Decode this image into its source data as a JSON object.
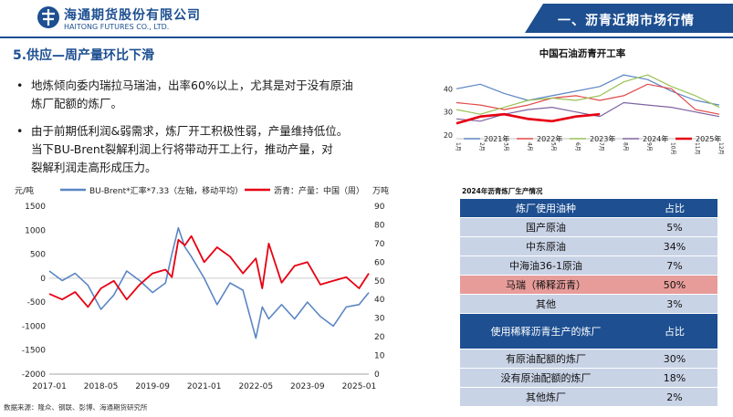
{
  "header": {
    "company_cn": "海通期货股份有限公司",
    "company_en": "HAITONG FUTURES CO., LTD.",
    "section_label": "一、沥青近期市场行情",
    "brand_color": "#1d4f91"
  },
  "section_title": "5.供应—周产量环比下滑",
  "bullets": [
    {
      "lines": [
        "地炼倾向委内瑞拉马瑞油，出率60%以上，尤其是对于没有原油",
        "炼厂配额的炼厂。"
      ]
    },
    {
      "lines": [
        "由于前期低利润&弱需求，炼厂开工积极性弱，产量维持低位。",
        "当下BU-Brent裂解利润上行将带动开工上行，推动产量，对",
        "裂解利润走高形成压力。"
      ]
    }
  ],
  "bullet_glyph": "•",
  "left_chart_text": {
    "left_unit": "元/吨",
    "right_unit": "万吨",
    "legend_blue": "BU-Brent*汇率*7.33（左轴，移动平均）",
    "legend_red": "沥青：产量：中国（周）"
  },
  "source": "数据来源：隆众、钢联、彭博、海通期货研究所",
  "right_chart_title": "中国石油沥青开工率",
  "table_title": "2024年沥青炼厂生产情况",
  "table": {
    "header1": [
      "炼厂使用油种",
      "占比"
    ],
    "rows1": [
      {
        "name": "国产原油",
        "pct": "5%",
        "highlight": false
      },
      {
        "name": "中东原油",
        "pct": "34%",
        "highlight": false
      },
      {
        "name": "中海油36-1原油",
        "pct": "7%",
        "highlight": false
      },
      {
        "name": "马瑞（稀释沥青）",
        "pct": "50%",
        "highlight": true
      },
      {
        "name": "其他",
        "pct": "3%",
        "highlight": false
      }
    ],
    "header2": [
      "使用稀释沥青生产的炼厂",
      "占比"
    ],
    "rows2": [
      {
        "name": "有原油配额的炼厂",
        "pct": "30%"
      },
      {
        "name": "没有原油配额的炼厂",
        "pct": "18%"
      },
      {
        "name": "其他炼厂",
        "pct": "2%"
      }
    ]
  },
  "chart_data": [
    {
      "type": "line",
      "xlabel": "",
      "x_ticks": [
        "2017-01",
        "2018-05",
        "2019-09",
        "2021-01",
        "2022-05",
        "2023-09",
        "2025-01"
      ],
      "x_range": [
        "2017-01",
        "2025-04"
      ],
      "ylabel_left": "元/吨",
      "ylabel_right": "万吨",
      "ylim_left": [
        -2000,
        1500
      ],
      "y_ticks_left": [
        -2000,
        -1500,
        -1000,
        -500,
        0,
        500,
        1000,
        1500
      ],
      "ylim_right": [
        0,
        90
      ],
      "y_ticks_right": [
        0,
        10,
        20,
        30,
        40,
        50,
        60,
        70,
        80,
        90
      ],
      "legend_position": "top",
      "series": [
        {
          "name": "BU-Brent*汇率*7.33（左轴，移动平均）",
          "axis": "left",
          "color": "#5b86c4",
          "x": [
            "2017-01",
            "2017-05",
            "2017-09",
            "2018-01",
            "2018-05",
            "2018-09",
            "2019-01",
            "2019-05",
            "2019-09",
            "2020-01",
            "2020-03",
            "2020-05",
            "2020-07",
            "2020-09",
            "2021-01",
            "2021-05",
            "2021-09",
            "2022-01",
            "2022-05",
            "2022-07",
            "2022-09",
            "2023-01",
            "2023-05",
            "2023-09",
            "2024-01",
            "2024-05",
            "2024-09",
            "2025-01",
            "2025-04"
          ],
          "values": [
            150,
            -50,
            100,
            -150,
            -650,
            -350,
            150,
            -50,
            -300,
            -100,
            500,
            1050,
            650,
            450,
            0,
            -550,
            -100,
            -250,
            -1250,
            -600,
            -850,
            -550,
            -850,
            -500,
            -800,
            -1000,
            -600,
            -550,
            -300
          ]
        },
        {
          "name": "沥青：产量：中国（周）",
          "axis": "right",
          "color": "#e60012",
          "x": [
            "2017-01",
            "2017-05",
            "2017-09",
            "2018-01",
            "2018-05",
            "2018-09",
            "2019-01",
            "2019-05",
            "2019-09",
            "2020-01",
            "2020-03",
            "2020-05",
            "2020-07",
            "2020-09",
            "2021-01",
            "2021-05",
            "2021-09",
            "2022-01",
            "2022-05",
            "2022-07",
            "2022-09",
            "2023-01",
            "2023-05",
            "2023-09",
            "2024-01",
            "2024-05",
            "2024-09",
            "2025-01",
            "2025-04"
          ],
          "values": [
            43,
            40,
            44,
            36,
            46,
            50,
            40,
            48,
            54,
            56,
            52,
            72,
            69,
            74,
            60,
            68,
            63,
            54,
            62,
            46,
            70,
            49,
            58,
            60,
            48,
            50,
            52,
            46,
            54
          ]
        }
      ]
    },
    {
      "type": "line",
      "title": "中国石油沥青开工率",
      "x_ticks": [
        "1月",
        "2月",
        "3月",
        "4月",
        "5月",
        "6月",
        "7月",
        "8月",
        "9月",
        "10月",
        "11月",
        "12月"
      ],
      "ylim": [
        20,
        50
      ],
      "y_ticks": [
        20,
        30,
        40
      ],
      "legend_position": "bottom",
      "series": [
        {
          "name": "2021年",
          "color": "#5b86c4",
          "values": [
            40,
            42,
            38,
            35,
            37,
            39,
            41,
            46,
            44,
            39,
            35,
            33
          ]
        },
        {
          "name": "2022年",
          "color": "#e24b4b",
          "values": [
            34,
            33,
            31,
            33,
            36,
            37,
            35,
            37,
            42,
            40,
            31,
            29
          ]
        },
        {
          "name": "2023年",
          "color": "#9ac255",
          "values": [
            31,
            29,
            32,
            35,
            36,
            35,
            37,
            43,
            46,
            41,
            37,
            32
          ]
        },
        {
          "name": "2024年",
          "color": "#8064a2",
          "values": [
            27,
            26,
            29,
            31,
            32,
            30,
            28,
            34,
            33,
            32,
            30,
            28
          ]
        },
        {
          "name": "2025年",
          "color": "#e60012",
          "values": [
            25,
            28,
            29,
            27,
            26,
            28,
            29
          ]
        }
      ]
    }
  ]
}
